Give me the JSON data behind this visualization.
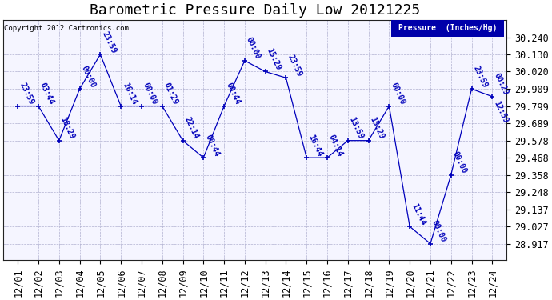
{
  "title": "Barometric Pressure Daily Low 20121225",
  "copyright": "Copyright 2012 Cartronics.com",
  "legend_label": "Pressure  (Inches/Hg)",
  "background_color": "#ffffff",
  "plot_bg_color": "#f5f5ff",
  "line_color": "#0000bb",
  "grid_color": "#aaaacc",
  "dates": [
    "12/01",
    "12/02",
    "12/03",
    "12/04",
    "12/05",
    "12/06",
    "12/07",
    "12/08",
    "12/09",
    "12/10",
    "12/11",
    "12/12",
    "12/13",
    "12/14",
    "12/15",
    "12/16",
    "12/17",
    "12/18",
    "12/19",
    "12/20",
    "12/21",
    "12/22",
    "12/23",
    "12/24"
  ],
  "values": [
    29.799,
    29.799,
    29.578,
    29.909,
    30.13,
    29.799,
    29.799,
    29.799,
    29.578,
    29.468,
    29.799,
    30.09,
    30.02,
    29.98,
    29.468,
    29.468,
    29.578,
    29.578,
    29.799,
    29.027,
    28.917,
    29.358,
    29.909,
    29.86
  ],
  "times": [
    "23:59",
    "03:44",
    "18:29",
    "00:00",
    "23:59",
    "16:14",
    "00:00",
    "01:29",
    "22:14",
    "00:44",
    "00:44",
    "00:00",
    "15:29",
    "23:59",
    "16:44",
    "04:14",
    "13:59",
    "15:29",
    "00:00",
    "11:44",
    "00:00",
    "00:00",
    "23:59",
    "00:29"
  ],
  "time2": [
    "",
    "",
    "",
    "",
    "",
    "",
    "",
    "",
    "",
    "",
    "",
    "",
    "",
    "",
    "",
    "",
    "",
    "",
    "",
    "",
    "",
    "",
    "",
    "12:59"
  ],
  "ylim_min": 28.81,
  "ylim_max": 30.35,
  "yticks": [
    28.917,
    29.027,
    29.137,
    29.248,
    29.358,
    29.468,
    29.578,
    29.689,
    29.799,
    29.909,
    30.02,
    30.13,
    30.24
  ],
  "title_fontsize": 13,
  "tick_fontsize": 8.5,
  "annot_fontsize": 7
}
